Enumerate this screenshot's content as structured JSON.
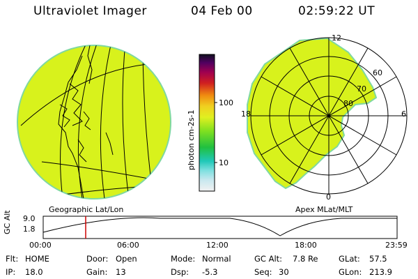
{
  "header": {
    "instrument": "Ultraviolet Imager",
    "date": "04 Feb 00",
    "time": "02:59:22 UT"
  },
  "colorbar": {
    "label": "photon cm-2s-1",
    "ticks": [
      "100",
      "10"
    ]
  },
  "geo_panel": {
    "label": "Geographic Lat/Lon"
  },
  "polar_panel": {
    "label": "Apex MLat/MLT",
    "mlt_labels": [
      "12",
      "18",
      "6",
      "0"
    ],
    "lat_labels": [
      "60",
      "70",
      "80"
    ]
  },
  "timeline": {
    "axis_label": "GC Alt",
    "y_ticks": [
      "9.0",
      "1.8"
    ],
    "x_ticks": [
      "00:00",
      "06:00",
      "12:00",
      "18:00",
      "23:59"
    ]
  },
  "info": {
    "flt_label": "Flt:",
    "flt_value": "HOME",
    "ip_label": "IP:",
    "ip_value": "18.0",
    "door_label": "Door:",
    "door_value": "Open",
    "gain_label": "Gain:",
    "gain_value": "13",
    "mode_label": "Mode:",
    "mode_value": "Normal",
    "dsp_label": "Dsp:",
    "dsp_value": "-5.3",
    "gcalt_label": "GC Alt:",
    "gcalt_value": "7.8 Re",
    "seq_label": "Seq:",
    "seq_value": "30",
    "glat_label": "GLat:",
    "glat_value": "57.5",
    "glon_label": "GLon:",
    "glon_value": "213.9"
  },
  "colors": {
    "image_fill": "#d8f21c",
    "image_edge": "#7fd8a0",
    "time_marker": "#cc0000"
  }
}
